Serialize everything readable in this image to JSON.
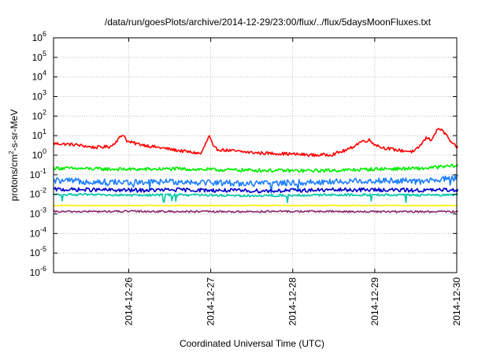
{
  "chart_data": {
    "type": "line",
    "title": "/data/run/goesPlots/archive/2014-12-29/23:00/flux/../flux/5daysMoonFluxes.txt",
    "xlabel": "Coordinated Universal Time (UTC)",
    "ylabel": "protons/cm2-s-sr-MeV",
    "ylabel_parts": {
      "main": "protons/cm",
      "sup": "2",
      "rest": "-s-sr-MeV"
    },
    "x_range": [
      "2014-12-25T02:00",
      "2014-12-30T00:00"
    ],
    "x_tick_labels": [
      "2014-12-26",
      "2014-12-27",
      "2014-12-28",
      "2014-12-29",
      "2014-12-30"
    ],
    "y_scale": "log",
    "ylim": [
      1e-06,
      1000000.0
    ],
    "y_tick_labels": [
      {
        "base": "10",
        "exp": "-6"
      },
      {
        "base": "10",
        "exp": "-5"
      },
      {
        "base": "10",
        "exp": "-4"
      },
      {
        "base": "10",
        "exp": "-3"
      },
      {
        "base": "10",
        "exp": "-2"
      },
      {
        "base": "10",
        "exp": "-1"
      },
      {
        "base": "10",
        "exp": "0"
      },
      {
        "base": "10",
        "exp": "1"
      },
      {
        "base": "10",
        "exp": "2"
      },
      {
        "base": "10",
        "exp": "3"
      },
      {
        "base": "10",
        "exp": "4"
      },
      {
        "base": "10",
        "exp": "5"
      },
      {
        "base": "10",
        "exp": "6"
      }
    ],
    "grid": true,
    "colors": {
      "red": "#ff0000",
      "green": "#00ee00",
      "skyblue": "#1e7fff",
      "blue": "#0000cc",
      "teal": "#00c8a8",
      "yellow": "#ffee00",
      "purple": "#8b2a6b",
      "grid": "#b0b0b0"
    },
    "series": [
      {
        "color_key": "red",
        "x_day_offset": [
          0,
          0.25,
          0.5,
          0.7,
          0.85,
          0.9,
          1.0,
          1.2,
          1.5,
          1.8,
          1.9,
          1.95,
          2.0,
          2.1,
          2.3,
          2.5,
          2.8,
          3.0,
          3.2,
          3.4,
          3.6,
          3.75,
          3.85,
          3.9,
          4.0,
          4.2,
          4.4,
          4.45,
          4.55,
          4.6,
          4.7,
          4.8,
          4.85,
          4.93
        ],
        "values": [
          4,
          3.5,
          2.5,
          2.8,
          12,
          5,
          4,
          2.8,
          1.8,
          1.2,
          10,
          2.5,
          2,
          1.8,
          1.5,
          1.3,
          1.2,
          1.1,
          1.0,
          1.1,
          2.0,
          5,
          6,
          4,
          2.5,
          1.8,
          1.5,
          2.5,
          8,
          6,
          25,
          10,
          4,
          2.5
        ]
      },
      {
        "color_key": "green",
        "x_day_offset": [
          0,
          0.5,
          1.0,
          1.5,
          2.0,
          2.5,
          3.0,
          3.5,
          4.0,
          4.5,
          4.93
        ],
        "values": [
          0.22,
          0.2,
          0.19,
          0.2,
          0.18,
          0.17,
          0.16,
          0.17,
          0.2,
          0.21,
          0.3
        ]
      },
      {
        "color_key": "skyblue",
        "x_day_offset": [
          0,
          0.5,
          1.0,
          1.5,
          2.0,
          2.5,
          3.0,
          3.5,
          4.0,
          4.5,
          4.93
        ],
        "values": [
          0.05,
          0.045,
          0.04,
          0.045,
          0.04,
          0.035,
          0.04,
          0.045,
          0.05,
          0.045,
          0.07
        ]
      },
      {
        "color_key": "blue",
        "x_day_offset": [
          0,
          0.5,
          1.0,
          1.5,
          2.0,
          2.5,
          3.0,
          3.5,
          4.0,
          4.5,
          4.93
        ],
        "values": [
          0.018,
          0.017,
          0.016,
          0.017,
          0.016,
          0.015,
          0.016,
          0.017,
          0.017,
          0.016,
          0.017
        ]
      },
      {
        "color_key": "teal",
        "x_day_offset": [
          0,
          0.5,
          1.0,
          1.5,
          2.0,
          2.5,
          3.0,
          3.5,
          4.0,
          4.5,
          4.93
        ],
        "values": [
          0.01,
          0.0095,
          0.009,
          0.0095,
          0.009,
          0.0085,
          0.009,
          0.0095,
          0.0095,
          0.009,
          0.0095
        ]
      },
      {
        "color_key": "yellow",
        "x_day_offset": [
          0,
          1.0,
          2.0,
          3.0,
          4.0,
          4.93
        ],
        "values": [
          0.0027,
          0.0027,
          0.0027,
          0.0027,
          0.0027,
          0.0027
        ]
      },
      {
        "color_key": "purple",
        "x_day_offset": [
          0,
          1.0,
          2.0,
          3.0,
          4.0,
          4.93
        ],
        "values": [
          0.0013,
          0.00135,
          0.0013,
          0.00135,
          0.0013,
          0.0013
        ]
      }
    ]
  }
}
